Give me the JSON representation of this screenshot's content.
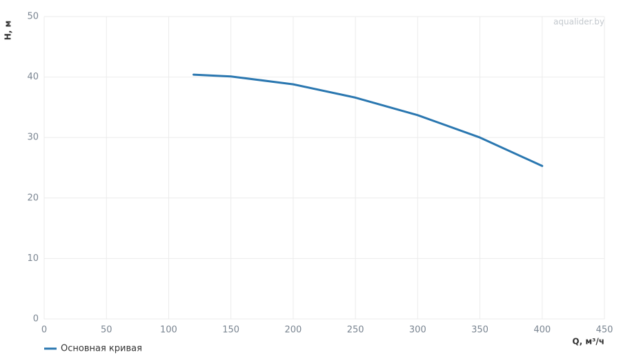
{
  "chart_data": {
    "type": "line",
    "watermark": "aqualider.by",
    "x_label": "Q, м³/ч",
    "y_label": "H, м",
    "x": [
      120,
      150,
      200,
      250,
      300,
      350,
      400
    ],
    "series": [
      {
        "name": "Основная кривая",
        "color": "#2a77b0",
        "values": [
          40.4,
          40.1,
          38.8,
          36.6,
          33.7,
          30.0,
          25.3
        ]
      }
    ],
    "xlim": [
      0,
      450
    ],
    "xticks": [
      0,
      50,
      100,
      150,
      200,
      250,
      300,
      350,
      400,
      450
    ],
    "ylim": [
      0,
      50
    ],
    "yticks": [
      0,
      10,
      20,
      30,
      40,
      50
    ],
    "grid": true,
    "legend": "bottom-left"
  }
}
